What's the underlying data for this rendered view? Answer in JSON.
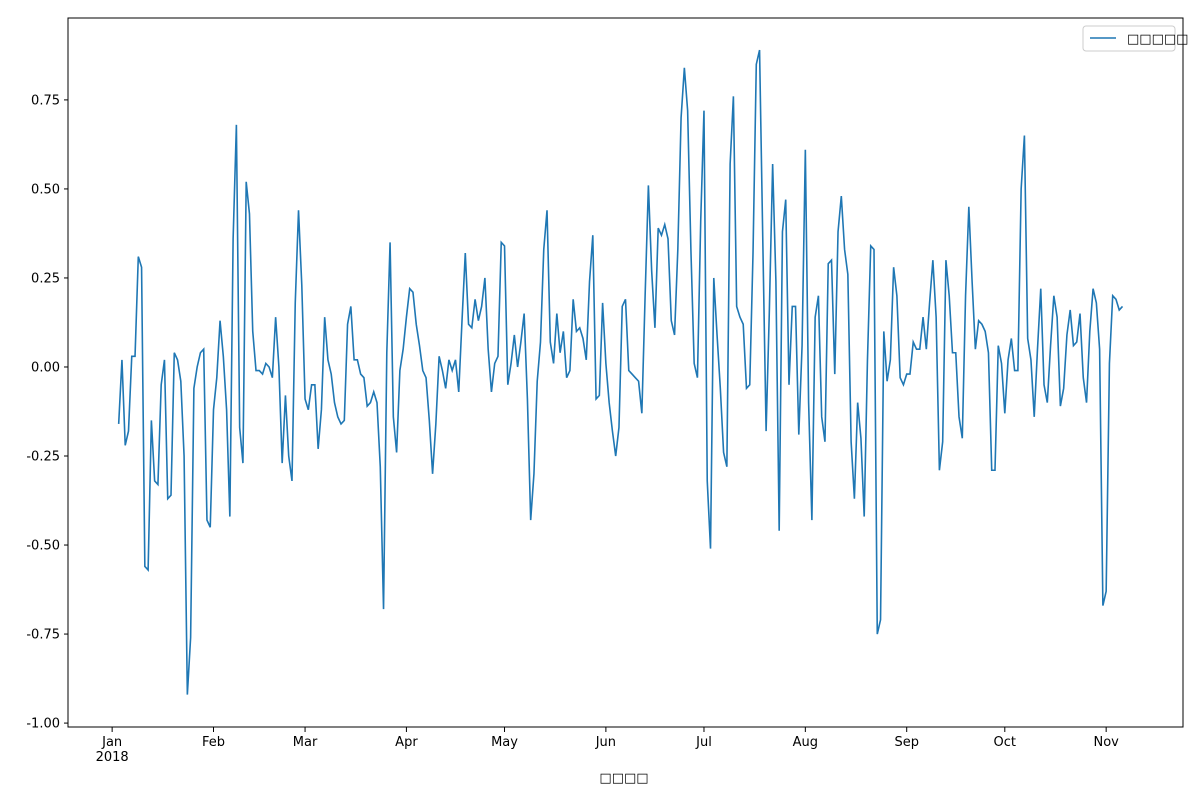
{
  "chart_data": {
    "type": "line",
    "x_label": "□□□□",
    "x": [
      2,
      3,
      4,
      5,
      6,
      7,
      8,
      9,
      10,
      11,
      12,
      13,
      14,
      15,
      16,
      17,
      18,
      19,
      20,
      21,
      22,
      23,
      24,
      25,
      26,
      27,
      28,
      29,
      30,
      31,
      32,
      33,
      34,
      35,
      36,
      37,
      38,
      39,
      40,
      41,
      42,
      43,
      44,
      45,
      46,
      47,
      48,
      49,
      50,
      51,
      52,
      53,
      54,
      55,
      56,
      57,
      58,
      59,
      60,
      61,
      62,
      63,
      64,
      65,
      66,
      67,
      68,
      69,
      70,
      71,
      72,
      73,
      74,
      75,
      76,
      77,
      78,
      79,
      80,
      81,
      82,
      83,
      84,
      85,
      86,
      87,
      88,
      89,
      90,
      91,
      92,
      93,
      94,
      95,
      96,
      97,
      98,
      99,
      100,
      101,
      102,
      103,
      104,
      105,
      106,
      107,
      108,
      109,
      110,
      111,
      112,
      113,
      114,
      115,
      116,
      117,
      118,
      119,
      120,
      121,
      122,
      123,
      124,
      125,
      126,
      127,
      128,
      129,
      130,
      131,
      132,
      133,
      134,
      135,
      136,
      137,
      138,
      139,
      140,
      141,
      142,
      143,
      144,
      145,
      146,
      147,
      148,
      149,
      150,
      151,
      152,
      153,
      154,
      155,
      156,
      157,
      158,
      159,
      160,
      161,
      162,
      163,
      164,
      165,
      166,
      167,
      168,
      169,
      170,
      171,
      172,
      173,
      174,
      175,
      176,
      177,
      178,
      179,
      180,
      181,
      182,
      183,
      184,
      185,
      186,
      187,
      188,
      189,
      190,
      191,
      192,
      193,
      194,
      195,
      196,
      197,
      198,
      199,
      200,
      201,
      202,
      203,
      204,
      205,
      206,
      207,
      208,
      209,
      210,
      211,
      212,
      213,
      214,
      215,
      216,
      217,
      218,
      219,
      220,
      221,
      222,
      223,
      224,
      225,
      226,
      227,
      228,
      229,
      230,
      231,
      232,
      233,
      234,
      235,
      236,
      237,
      238,
      239,
      240,
      241,
      242,
      243,
      244,
      245,
      246,
      247,
      248,
      249,
      250,
      251,
      252,
      253,
      254,
      255,
      256,
      257,
      258,
      259,
      260,
      261,
      262,
      263,
      264,
      265,
      266,
      267,
      268,
      269,
      270,
      271,
      272,
      273,
      274,
      275,
      276,
      277,
      278,
      279,
      280,
      281,
      282,
      283,
      284,
      285,
      286,
      287,
      288,
      289,
      290,
      291,
      292,
      293,
      294,
      295,
      296,
      297,
      298,
      299,
      300,
      301,
      302,
      303,
      304,
      305,
      306,
      307,
      308,
      309
    ],
    "series": [
      {
        "name": "□□□□□",
        "color": "#1f77b4",
        "values": [
          -0.16,
          0.02,
          -0.22,
          -0.18,
          0.03,
          0.03,
          0.31,
          0.28,
          -0.56,
          -0.57,
          -0.15,
          -0.32,
          -0.33,
          -0.05,
          0.02,
          -0.37,
          -0.36,
          0.04,
          0.02,
          -0.04,
          -0.25,
          -0.92,
          -0.76,
          -0.06,
          0.0,
          0.04,
          0.05,
          -0.43,
          -0.45,
          -0.12,
          -0.03,
          0.13,
          0.03,
          -0.12,
          -0.42,
          0.36,
          0.68,
          -0.17,
          -0.27,
          0.52,
          0.43,
          0.1,
          -0.01,
          -0.01,
          -0.02,
          0.01,
          0.0,
          -0.03,
          0.14,
          0.0,
          -0.27,
          -0.08,
          -0.25,
          -0.32,
          0.18,
          0.44,
          0.23,
          -0.09,
          -0.12,
          -0.05,
          -0.05,
          -0.23,
          -0.12,
          0.14,
          0.02,
          -0.02,
          -0.1,
          -0.14,
          -0.16,
          -0.15,
          0.12,
          0.17,
          0.02,
          0.02,
          -0.02,
          -0.03,
          -0.11,
          -0.1,
          -0.07,
          -0.1,
          -0.28,
          -0.68,
          0.04,
          0.35,
          -0.14,
          -0.24,
          -0.01,
          0.05,
          0.14,
          0.22,
          0.21,
          0.12,
          0.06,
          -0.01,
          -0.03,
          -0.15,
          -0.3,
          -0.16,
          0.03,
          -0.01,
          -0.06,
          0.02,
          -0.01,
          0.02,
          -0.07,
          0.13,
          0.32,
          0.12,
          0.11,
          0.19,
          0.13,
          0.17,
          0.25,
          0.05,
          -0.07,
          0.01,
          0.03,
          0.35,
          0.34,
          -0.05,
          0.01,
          0.09,
          0.0,
          0.07,
          0.15,
          -0.09,
          -0.43,
          -0.3,
          -0.04,
          0.07,
          0.33,
          0.44,
          0.07,
          0.01,
          0.15,
          0.04,
          0.1,
          -0.03,
          -0.01,
          0.19,
          0.1,
          0.11,
          0.08,
          0.02,
          0.24,
          0.37,
          -0.09,
          -0.08,
          0.18,
          0.01,
          -0.1,
          -0.18,
          -0.25,
          -0.17,
          0.17,
          0.19,
          -0.01,
          -0.02,
          -0.03,
          -0.04,
          -0.13,
          0.2,
          0.51,
          0.27,
          0.11,
          0.39,
          0.37,
          0.4,
          0.36,
          0.13,
          0.09,
          0.33,
          0.7,
          0.84,
          0.72,
          0.33,
          0.01,
          -0.03,
          0.41,
          0.72,
          -0.32,
          -0.51,
          0.25,
          0.09,
          -0.06,
          -0.24,
          -0.28,
          0.57,
          0.76,
          0.17,
          0.14,
          0.12,
          -0.06,
          -0.05,
          0.32,
          0.85,
          0.89,
          0.35,
          -0.18,
          0.16,
          0.57,
          0.24,
          -0.46,
          0.38,
          0.47,
          -0.05,
          0.17,
          0.17,
          -0.19,
          0.06,
          0.61,
          -0.1,
          -0.43,
          0.14,
          0.2,
          -0.14,
          -0.21,
          0.29,
          0.3,
          -0.02,
          0.38,
          0.48,
          0.33,
          0.26,
          -0.21,
          -0.37,
          -0.1,
          -0.2,
          -0.42,
          0.02,
          0.34,
          0.33,
          -0.75,
          -0.71,
          0.1,
          -0.04,
          0.02,
          0.28,
          0.2,
          -0.03,
          -0.05,
          -0.02,
          -0.02,
          0.07,
          0.05,
          0.05,
          0.14,
          0.05,
          0.18,
          0.3,
          0.14,
          -0.29,
          -0.21,
          0.3,
          0.2,
          0.04,
          0.04,
          -0.14,
          -0.2,
          0.2,
          0.45,
          0.24,
          0.05,
          0.13,
          0.12,
          0.1,
          0.04,
          -0.29,
          -0.29,
          0.06,
          0.01,
          -0.13,
          0.02,
          0.08,
          -0.01,
          -0.01,
          0.5,
          0.65,
          0.08,
          0.02,
          -0.14,
          0.05,
          0.22,
          -0.05,
          -0.1,
          0.06,
          0.2,
          0.14,
          -0.11,
          -0.06,
          0.09,
          0.16,
          0.06,
          0.07,
          0.15,
          -0.03,
          -0.1,
          0.1,
          0.22,
          0.18,
          0.05,
          -0.67,
          -0.63,
          0.01,
          0.2,
          0.19,
          0.16,
          0.17
        ]
      }
    ],
    "xlim": [
      -13.5,
      327.5
    ],
    "xticks": [
      {
        "value": 0,
        "label": "Jan\n2018"
      },
      {
        "value": 31,
        "label": "Feb"
      },
      {
        "value": 59,
        "label": "Mar"
      },
      {
        "value": 90,
        "label": "Apr"
      },
      {
        "value": 120,
        "label": "May"
      },
      {
        "value": 151,
        "label": "Jun"
      },
      {
        "value": 181,
        "label": "Jul"
      },
      {
        "value": 212,
        "label": "Aug"
      },
      {
        "value": 243,
        "label": "Sep"
      },
      {
        "value": 273,
        "label": "Oct"
      },
      {
        "value": 304,
        "label": "Nov"
      }
    ],
    "ylim": [
      -1.011,
      0.98
    ],
    "yticks": [
      {
        "value": -1,
        "label": "-1.00"
      },
      -0.75,
      {
        "value": -0.5,
        "label": "-0.50"
      },
      -0.25,
      {
        "value": 0,
        "label": "0.00"
      },
      0.25,
      {
        "value": 0.5,
        "label": "0.50"
      },
      0.75
    ],
    "legend": "upper right"
  }
}
